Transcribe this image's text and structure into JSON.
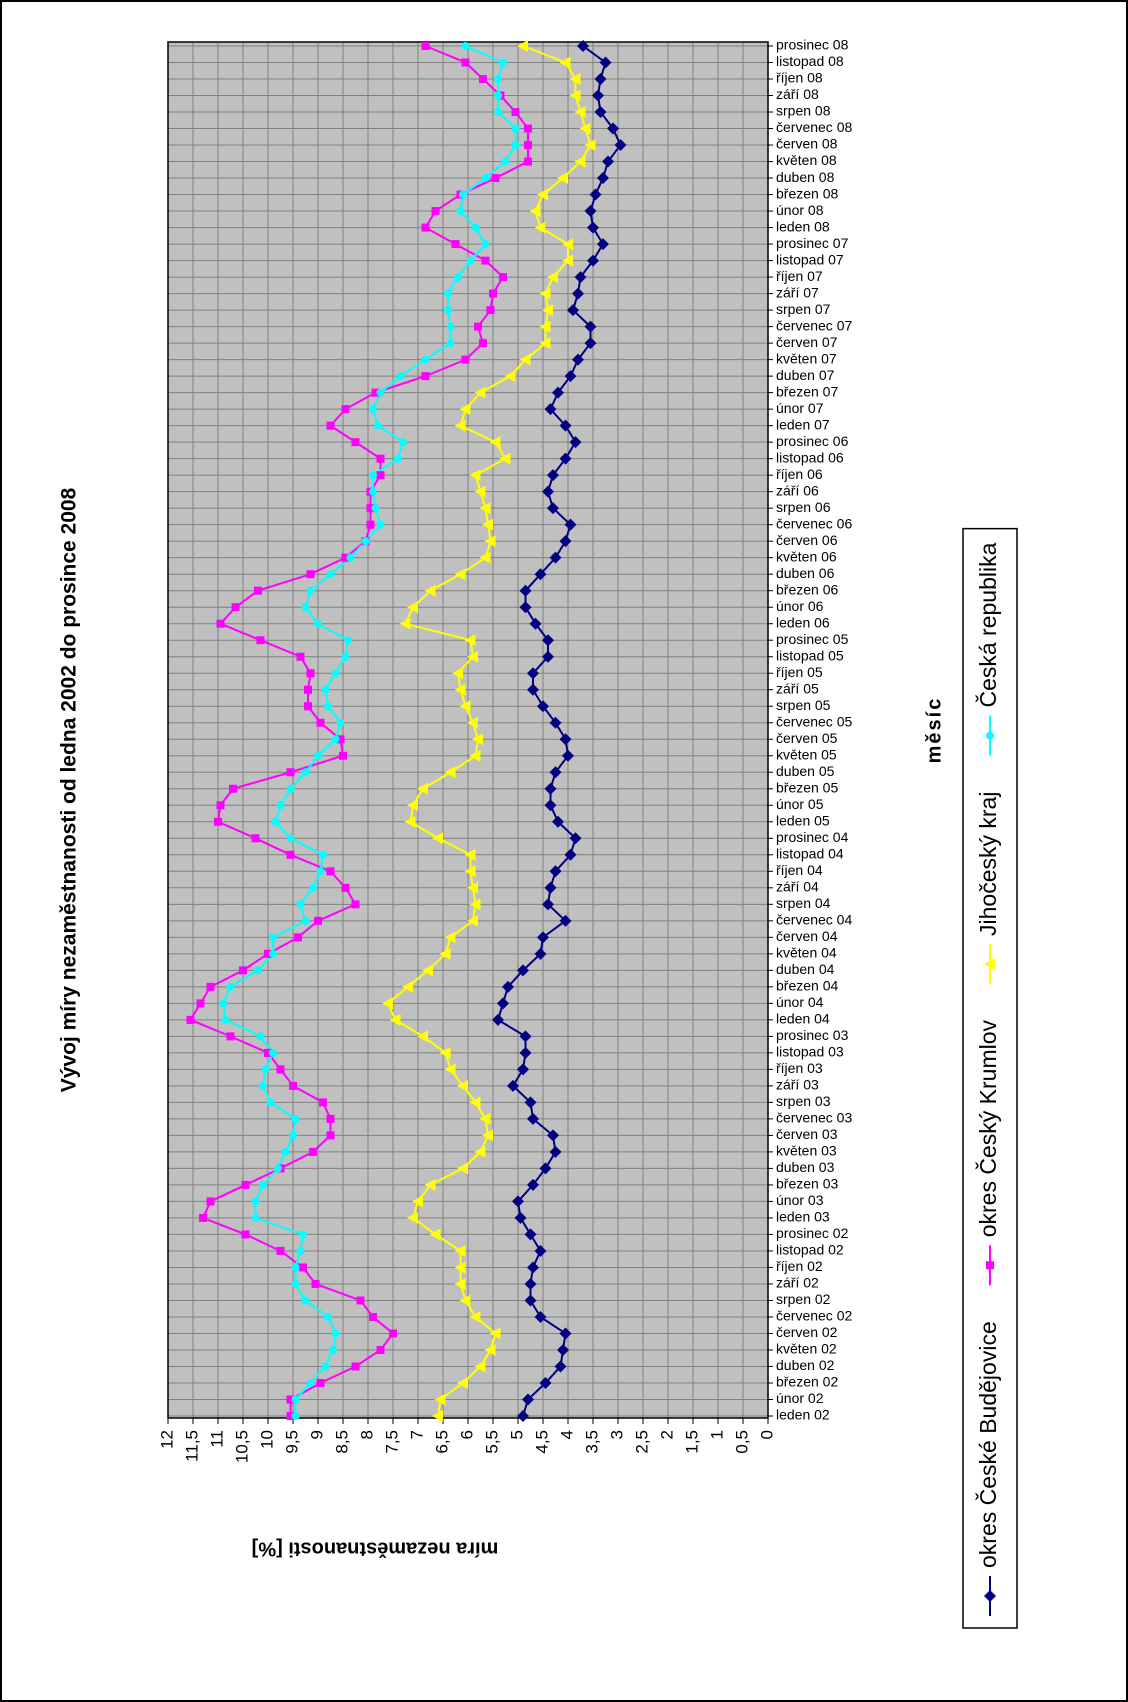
{
  "chart_data": {
    "type": "line",
    "title": "Vývoj míry nezaměstnanosti od ledna 2002 do prosince 2008",
    "x_label": "měsíc",
    "y_label": "míra nezaměstnanosti [%]",
    "categories": [
      "leden 02",
      "únor 02",
      "březen 02",
      "duben 02",
      "květen 02",
      "červen 02",
      "červenec 02",
      "srpen 02",
      "září 02",
      "říjen 02",
      "listopad 02",
      "prosinec 02",
      "leden 03",
      "únor 03",
      "březen 03",
      "duben 03",
      "květen 03",
      "červen 03",
      "červenec 03",
      "srpen 03",
      "září 03",
      "říjen 03",
      "listopad 03",
      "prosinec 03",
      "leden 04",
      "únor 04",
      "březen 04",
      "duben 04",
      "květen 04",
      "červen 04",
      "červenec 04",
      "srpen 04",
      "září 04",
      "říjen 04",
      "listopad 04",
      "prosinec 04",
      "leden 05",
      "únor 05",
      "březen 05",
      "duben 05",
      "květen 05",
      "červen 05",
      "červenec 05",
      "srpen 05",
      "září 05",
      "říjen 05",
      "listopad 05",
      "prosinec 05",
      "leden 06",
      "únor 06",
      "březen 06",
      "duben 06",
      "květen 06",
      "červen 06",
      "červenec 06",
      "srpen 06",
      "září 06",
      "říjen 06",
      "listopad 06",
      "prosinec 06",
      "leden 07",
      "únor 07",
      "březen 07",
      "duben 07",
      "květen 07",
      "červen 07",
      "červenec 07",
      "srpen 07",
      "září 07",
      "říjen 07",
      "listopad 07",
      "prosinec 07",
      "leden 08",
      "únor 08",
      "březen 08",
      "duben 08",
      "květen 08",
      "červen 08",
      "červenec 08",
      "srpen 08",
      "září 08",
      "říjen 08",
      "listopad 08",
      "prosinec 08"
    ],
    "series": [
      {
        "name": "okres České Budějovice",
        "color": "#000080",
        "marker": "diamond",
        "values": [
          4.9,
          4.8,
          4.45,
          4.15,
          4.1,
          4.05,
          4.55,
          4.75,
          4.75,
          4.7,
          4.55,
          4.75,
          4.95,
          5.0,
          4.7,
          4.45,
          4.25,
          4.3,
          4.7,
          4.75,
          5.1,
          4.9,
          4.85,
          4.85,
          5.4,
          5.3,
          5.2,
          4.9,
          4.55,
          4.5,
          4.05,
          4.4,
          4.35,
          4.25,
          3.95,
          3.85,
          4.2,
          4.35,
          4.35,
          4.25,
          4.0,
          4.05,
          4.25,
          4.5,
          4.7,
          4.7,
          4.4,
          4.4,
          4.65,
          4.85,
          4.85,
          4.55,
          4.25,
          4.05,
          3.95,
          4.3,
          4.4,
          4.3,
          4.05,
          3.85,
          4.05,
          4.35,
          4.2,
          3.95,
          3.8,
          3.55,
          3.55,
          3.9,
          3.8,
          3.75,
          3.5,
          3.3,
          3.5,
          3.55,
          3.45,
          3.3,
          3.2,
          2.95,
          3.1,
          3.35,
          3.4,
          3.35,
          3.25,
          3.7
        ]
      },
      {
        "name": "okres Český Krumlov",
        "color": "#ff00ff",
        "marker": "square",
        "values": [
          9.55,
          9.55,
          8.95,
          8.25,
          7.75,
          7.5,
          7.9,
          8.15,
          9.05,
          9.3,
          9.75,
          10.45,
          11.3,
          11.15,
          10.45,
          9.75,
          9.1,
          8.75,
          8.75,
          8.9,
          9.5,
          9.75,
          10.0,
          10.75,
          11.55,
          11.35,
          11.15,
          10.5,
          10.0,
          9.4,
          9.0,
          8.25,
          8.45,
          8.75,
          9.55,
          10.25,
          11.0,
          10.95,
          10.7,
          9.55,
          8.5,
          8.55,
          8.95,
          9.2,
          9.2,
          9.15,
          9.35,
          10.15,
          10.95,
          10.65,
          10.2,
          9.15,
          8.45,
          8.05,
          7.95,
          7.95,
          7.95,
          7.75,
          7.75,
          8.25,
          8.75,
          8.45,
          7.85,
          6.85,
          6.05,
          5.7,
          5.8,
          5.55,
          5.5,
          5.3,
          5.65,
          6.25,
          6.85,
          6.65,
          6.15,
          5.45,
          4.8,
          4.8,
          4.8,
          5.05,
          5.35,
          5.7,
          6.05,
          6.85
        ]
      },
      {
        "name": "Jihočeský kraj",
        "color": "#ffff00",
        "marker": "triangle",
        "values": [
          6.6,
          6.55,
          6.1,
          5.75,
          5.55,
          5.45,
          5.85,
          6.05,
          6.15,
          6.15,
          6.15,
          6.65,
          7.1,
          7.0,
          6.75,
          6.1,
          5.75,
          5.6,
          5.65,
          5.85,
          6.1,
          6.35,
          6.45,
          6.9,
          7.45,
          7.6,
          7.2,
          6.8,
          6.45,
          6.35,
          5.9,
          5.85,
          5.9,
          5.95,
          5.95,
          6.6,
          7.15,
          7.1,
          6.9,
          6.35,
          5.85,
          5.8,
          5.9,
          6.05,
          6.15,
          6.2,
          5.9,
          5.95,
          7.25,
          7.1,
          6.75,
          6.15,
          5.65,
          5.55,
          5.6,
          5.65,
          5.75,
          5.85,
          5.25,
          5.45,
          6.15,
          6.05,
          5.75,
          5.15,
          4.85,
          4.45,
          4.45,
          4.4,
          4.45,
          4.3,
          4.0,
          4.0,
          4.55,
          4.65,
          4.5,
          4.1,
          3.75,
          3.55,
          3.65,
          3.75,
          3.85,
          3.85,
          4.05,
          4.9
        ]
      },
      {
        "name": "Česká republika",
        "color": "#00ffff",
        "marker": "circle",
        "values": [
          9.45,
          9.45,
          9.15,
          8.85,
          8.7,
          8.65,
          8.8,
          9.25,
          9.45,
          9.45,
          9.35,
          9.3,
          10.25,
          10.25,
          10.1,
          9.8,
          9.65,
          9.5,
          9.45,
          9.95,
          10.1,
          10.05,
          9.9,
          10.15,
          10.85,
          10.9,
          10.75,
          10.2,
          9.9,
          9.9,
          9.25,
          9.35,
          9.1,
          8.95,
          8.9,
          9.55,
          9.85,
          9.75,
          9.55,
          9.25,
          9.0,
          8.65,
          8.55,
          8.8,
          8.85,
          8.65,
          8.45,
          8.4,
          9.0,
          9.25,
          9.15,
          8.75,
          8.35,
          8.05,
          7.75,
          7.85,
          7.9,
          7.9,
          7.4,
          7.3,
          7.8,
          7.9,
          7.75,
          7.35,
          6.85,
          6.35,
          6.35,
          6.4,
          6.4,
          6.2,
          5.95,
          5.65,
          5.85,
          6.15,
          6.1,
          5.65,
          5.25,
          5.05,
          5.05,
          5.4,
          5.4,
          5.4,
          5.3,
          6.05
        ]
      }
    ],
    "ylim": [
      0,
      12
    ],
    "yticks": [
      0,
      {
        "value": 0.5,
        "label": "0,5"
      },
      1,
      {
        "value": 1.5,
        "label": "1,5"
      },
      2,
      {
        "value": 2.5,
        "label": "2,5"
      },
      3,
      {
        "value": 3.5,
        "label": "3,5"
      },
      4,
      {
        "value": 4.5,
        "label": "4,5"
      },
      5,
      {
        "value": 5.5,
        "label": "5,5"
      },
      6,
      {
        "value": 6.5,
        "label": "6,5"
      },
      7,
      {
        "value": 7.5,
        "label": "7,5"
      },
      8,
      {
        "value": 8.5,
        "label": "8,5"
      },
      9,
      {
        "value": 9.5,
        "label": "9,5"
      },
      10,
      {
        "value": 10.5,
        "label": "10,5"
      },
      11,
      {
        "value": 11.5,
        "label": "11,5"
      },
      12
    ],
    "grid": true,
    "legend": "bottom",
    "plot_background": "#c0c0c0"
  }
}
